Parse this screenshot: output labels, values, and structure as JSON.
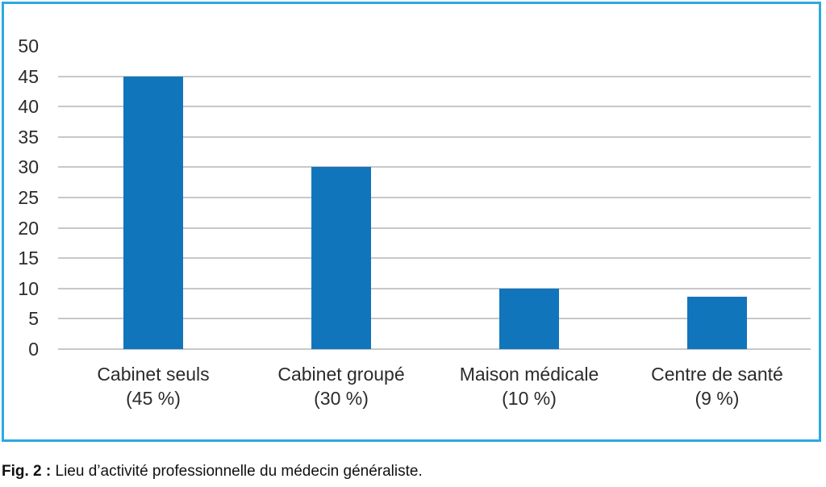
{
  "figure": {
    "border_color": "#2BA9E1",
    "caption": {
      "prefix": "Fig. 2 :",
      "text": " Lieu d’activité professionnelle du médecin généraliste."
    }
  },
  "chart_data": {
    "type": "bar",
    "title": "",
    "xlabel": "",
    "ylabel": "",
    "categories": [
      "Cabinet seuls",
      "Cabinet groupé",
      "Maison médicale",
      "Centre de santé"
    ],
    "category_sublabels": [
      "(45 %)",
      "(30 %)",
      "(10 %)",
      "(9 %)"
    ],
    "values": [
      45,
      30,
      10,
      8.7
    ],
    "ylim": [
      0,
      50
    ],
    "yticks": [
      0,
      5,
      10,
      15,
      20,
      25,
      30,
      35,
      40,
      45,
      50
    ],
    "gridline_max": 45,
    "grid": true,
    "legend": false,
    "bar_color": "#1175BC",
    "gridline_color": "#C8C8C8",
    "axis_label_color": "#2B2B2B"
  }
}
